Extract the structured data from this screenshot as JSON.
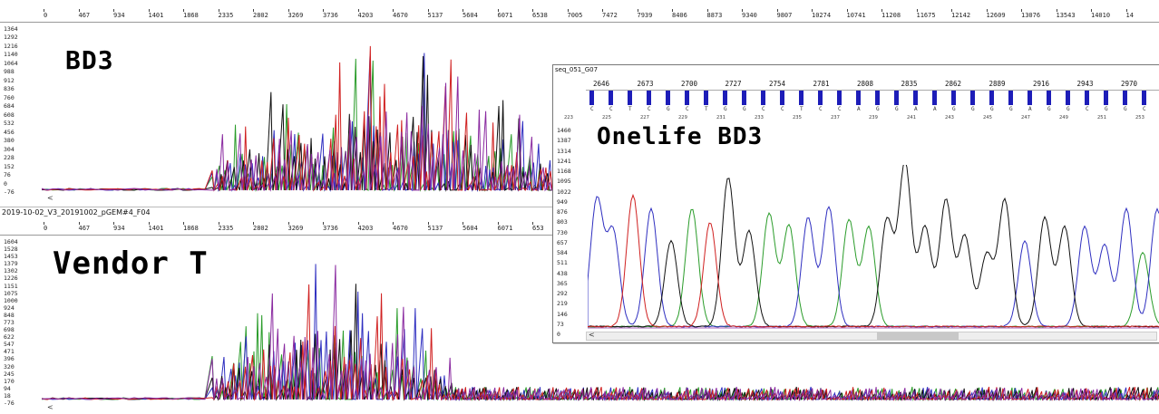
{
  "top_panel": {
    "ruler": [
      "0",
      "467",
      "934",
      "1401",
      "1868",
      "2335",
      "2802",
      "3269",
      "3736",
      "4203",
      "4670",
      "5137",
      "5604",
      "6071",
      "6538",
      "7005",
      "7472",
      "7939",
      "8406",
      "8873",
      "9340",
      "9807",
      "10274",
      "10741",
      "11208",
      "11675",
      "12142",
      "12609",
      "13076",
      "13543",
      "14010",
      "14"
    ],
    "yaxis": [
      "1364",
      "1292",
      "1216",
      "1140",
      "1064",
      "988",
      "912",
      "836",
      "760",
      "684",
      "608",
      "532",
      "456",
      "380",
      "304",
      "228",
      "152",
      "76",
      "0",
      "-76"
    ],
    "label": "BD3",
    "scroll_left": "<"
  },
  "bottom_panel": {
    "file_title": "2019-10-02_V3_20191002_pGEM#4_F04",
    "ruler": [
      "0",
      "467",
      "934",
      "1401",
      "1868",
      "2335",
      "2802",
      "3269",
      "3736",
      "4203",
      "4670",
      "5137",
      "5604",
      "6071",
      "653"
    ],
    "yaxis": [
      "1604",
      "1528",
      "1453",
      "1379",
      "1302",
      "1226",
      "1151",
      "1075",
      "1000",
      "924",
      "848",
      "773",
      "698",
      "622",
      "547",
      "471",
      "396",
      "320",
      "245",
      "170",
      "94",
      "18",
      "-76"
    ],
    "label": "Vendor T",
    "scroll_left": "<"
  },
  "inset": {
    "title": "seq_051_G07",
    "ruler": [
      "2646",
      "2673",
      "2700",
      "2727",
      "2754",
      "2781",
      "2808",
      "2835",
      "2862",
      "2889",
      "2916",
      "2943",
      "2970"
    ],
    "bases": [
      "C",
      "C",
      "T",
      "C",
      "G",
      "C",
      "T",
      "G",
      "G",
      "C",
      "C",
      "T",
      "C",
      "C",
      "A",
      "G",
      "G",
      "A",
      "A",
      "G",
      "G",
      "G",
      "G",
      "A",
      "G",
      "G",
      "C",
      "G",
      "G",
      "C"
    ],
    "base_numbers": [
      "223",
      "225",
      "227",
      "229",
      "231",
      "233",
      "235",
      "237",
      "239",
      "241",
      "243",
      "245",
      "247",
      "249",
      "251",
      "253"
    ],
    "yaxis": [
      "1460",
      "1387",
      "1314",
      "1241",
      "1168",
      "1095",
      "1022",
      "949",
      "876",
      "803",
      "730",
      "657",
      "584",
      "511",
      "438",
      "365",
      "292",
      "219",
      "146",
      "73",
      "0"
    ],
    "label": "Onelife BD3",
    "scroll_left": "<"
  },
  "colors": {
    "A": "#2a9c2a",
    "C": "#2f2fc0",
    "G": "#111111",
    "T": "#d02020",
    "N": "#8a2aa0",
    "qbar": "#1d1db8"
  }
}
